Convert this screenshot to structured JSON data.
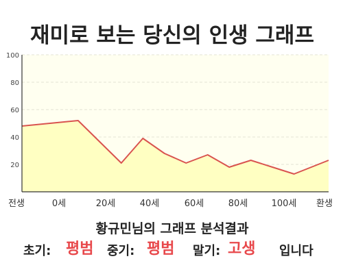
{
  "header": {
    "title": "재미로 보는 당신의 인생 그래프"
  },
  "colors": {
    "line": "#d9534f",
    "area_fill": "#ffffc2",
    "plot_background": "#fffff0",
    "grid": "#e3e3d3",
    "highlight": "#e8484b"
  },
  "chart_data": {
    "type": "area",
    "title": "",
    "xlabel": "",
    "ylabel": "",
    "categories": [
      "전생",
      "0세",
      "20세",
      "40세",
      "60세",
      "80세",
      "100세",
      "환생"
    ],
    "x": [
      -26,
      0,
      20,
      30,
      40,
      50,
      60,
      70,
      80,
      90,
      100,
      116
    ],
    "values": [
      48,
      52,
      21,
      39,
      28,
      21,
      27,
      18,
      23,
      18,
      13,
      23
    ],
    "ylim": [
      0,
      100
    ],
    "yticks": [
      "20",
      "40",
      "60",
      "80",
      "100"
    ],
    "grid": true,
    "legend": "none"
  },
  "summary": {
    "subtitle": "황규민님의 그래프 분석결과",
    "early_label": "초기:",
    "early_value": "평범",
    "middle_label": "중기:",
    "middle_value": "평범",
    "late_label": "말기:",
    "late_value": "고생",
    "ending": "입니다"
  }
}
